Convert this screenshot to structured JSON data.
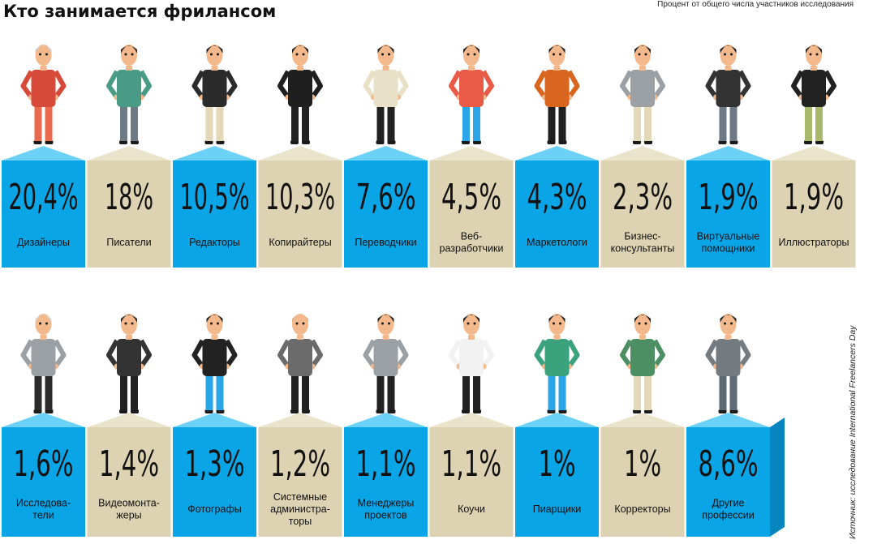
{
  "colors": {
    "blue": "#0aa5e6",
    "blue_roof": "#6cd1f7",
    "blue_side": "#0685bf",
    "beige": "#ddd2b2",
    "beige_roof": "#ebe4cc",
    "beige_side": "#c4b894"
  },
  "chart_data": {
    "type": "bar",
    "title": "Кто занимается фрилансом",
    "subtitle": "Процент от общего числа участников исследования",
    "source": "Источник: исследование International Freelancers Day",
    "unit": "%",
    "categories": [
      "Дизайнеры",
      "Писатели",
      "Редакторы",
      "Копирайтеры",
      "Переводчики",
      "Веб-\nразработчики",
      "Маркетологи",
      "Бизнес-\nконсультанты",
      "Виртуальные\nпомощники",
      "Иллюстраторы",
      "Исследова-\nтели",
      "Видеомонта-\nжеры",
      "Фотографы",
      "Системные\nадминистра-\nторы",
      "Менеджеры\nпроектов",
      "Коучи",
      "Пиарщики",
      "Корректоры",
      "Другие\nпрофессии"
    ],
    "values": [
      20.4,
      18,
      10.5,
      10.3,
      7.6,
      4.5,
      4.3,
      2.3,
      1.9,
      1.9,
      1.6,
      1.4,
      1.3,
      1.2,
      1.1,
      1.1,
      1,
      1,
      8.6
    ],
    "value_labels": [
      "20,4%",
      "18%",
      "10,5%",
      "10,3%",
      "7,6%",
      "4,5%",
      "4,3%",
      "2,3%",
      "1,9%",
      "1,9%",
      "1,6%",
      "1,4%",
      "1,3%",
      "1,2%",
      "1,1%",
      "1,1%",
      "1%",
      "1%",
      "8,6%"
    ]
  }
}
